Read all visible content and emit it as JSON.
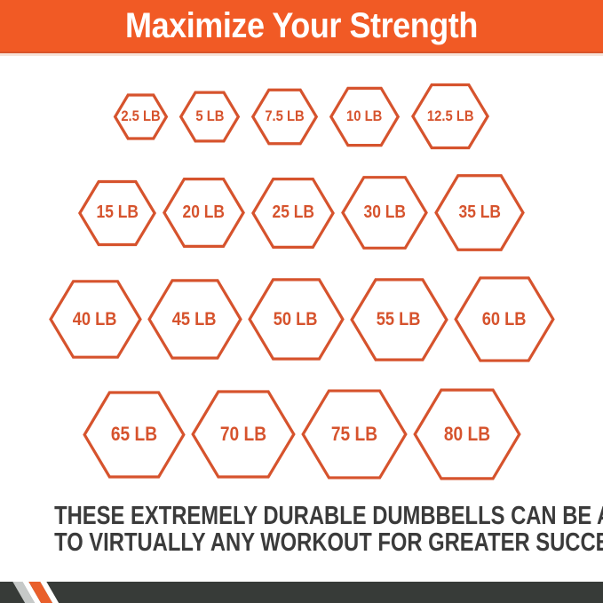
{
  "header": {
    "title": "Maximize Your Strength"
  },
  "hex_rows": [
    {
      "labels": [
        "2.5 LB",
        "5 LB",
        "7.5 LB",
        "10 LB",
        "12.5 LB"
      ]
    },
    {
      "labels": [
        "15 LB",
        "20 LB",
        "25 LB",
        "30 LB",
        "35 LB"
      ]
    },
    {
      "labels": [
        "40 LB",
        "45 LB",
        "50 LB",
        "55 LB",
        "60 LB"
      ]
    },
    {
      "labels": [
        "65 LB",
        "70 LB",
        "75 LB",
        "80 LB"
      ]
    }
  ],
  "footer": {
    "line1": "THESE EXTREMELY DURABLE DUMBBELLS CAN BE ADDED",
    "line2": "TO VIRTUALLY ANY WORKOUT FOR GREATER SUCCESS."
  },
  "colors": {
    "banner_orange": "#F15A25",
    "hex_orange": "#D6532D",
    "text_dark": "#3B3B3B",
    "bar_dark": "#373B38",
    "stripe_gray": "#C6C9C8",
    "stripe_white": "#FFFFFF",
    "stripe_orange": "#E95F2B"
  }
}
